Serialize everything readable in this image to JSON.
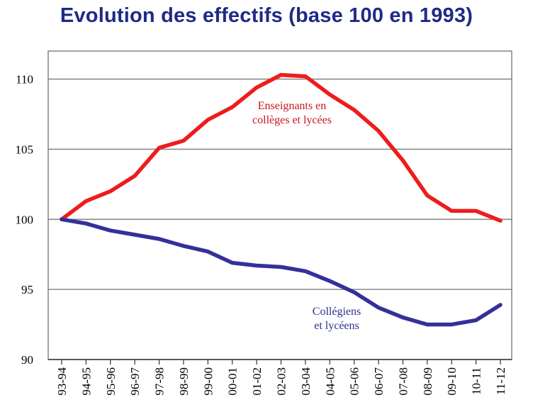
{
  "chart_data": {
    "type": "line",
    "title": "Evolution des effectifs (base 100 en 1993)",
    "xlabel": "",
    "ylabel": "",
    "categories": [
      "93-94",
      "94-95",
      "95-96",
      "96-97",
      "97-98",
      "98-99",
      "99-00",
      "00-01",
      "01-02",
      "02-03",
      "03-04",
      "04-05",
      "05-06",
      "06-07",
      "07-08",
      "08-09",
      "09-10",
      "10-11",
      "11-12"
    ],
    "ylim": [
      90,
      112
    ],
    "yticks": [
      90,
      95,
      100,
      105,
      110
    ],
    "grid": true,
    "series": [
      {
        "name_lines": [
          "Enseignants en",
          "collèges et lycées"
        ],
        "color": "#ee1c1c",
        "values": [
          100,
          101.3,
          102.0,
          103.1,
          105.1,
          105.6,
          107.1,
          108.0,
          109.4,
          110.3,
          110.2,
          108.9,
          107.8,
          106.3,
          104.2,
          101.7,
          100.6,
          100.6,
          99.9
        ]
      },
      {
        "name_lines": [
          "Collégiens",
          "et lycéens"
        ],
        "color": "#34309a",
        "values": [
          100,
          99.7,
          99.2,
          98.9,
          98.6,
          98.1,
          97.7,
          96.9,
          96.7,
          96.6,
          96.3,
          95.6,
          94.8,
          93.7,
          93.0,
          92.5,
          92.5,
          92.8,
          93.9
        ]
      }
    ]
  }
}
